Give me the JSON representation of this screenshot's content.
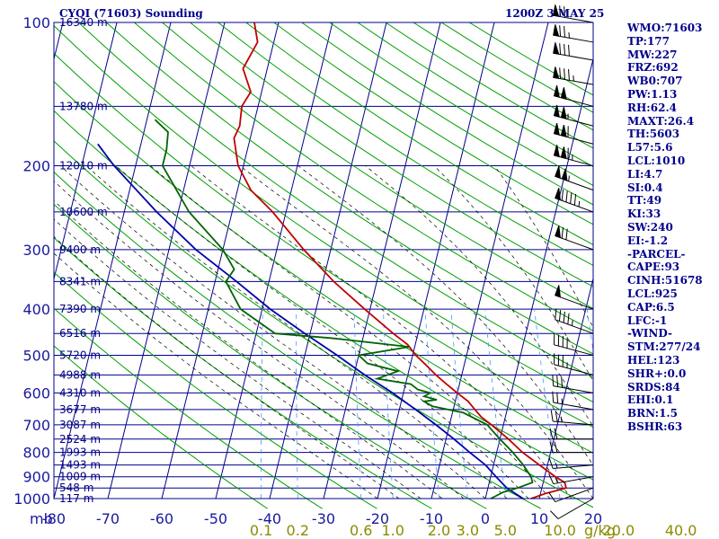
{
  "header": {
    "left": "CYQI (71603) Sounding",
    "right": "1200Z  3 MAY 25"
  },
  "indices": [
    "WMO:71603",
    "TP:177",
    "MW:227",
    "FRZ:692",
    "WB0:707",
    "PW:1.13",
    "RH:62.4",
    "MAXT:26.4",
    "TH:5603",
    "L57:5.6",
    "LCL:1010",
    "LI:4.7",
    "SI:0.4",
    "TT:49",
    "KI:33",
    "SW:240",
    "EI:-1.2",
    "-PARCEL-",
    "CAPE:93",
    "CINH:51678",
    "LCL:925",
    "CAP:6.5",
    "LFC:-1",
    "-WIND-",
    "STM:277/24",
    "HEL:123",
    "SHR+:0.0",
    "SRDS:84",
    "EHI:0.1",
    "BRN:1.5",
    "BSHR:63"
  ],
  "colors": {
    "isobar": "#00008b",
    "isotherm": "#00008b",
    "dry_adiabat": "#00a000",
    "moist_adiabat": "#000000",
    "mixing_ratio": "#4499ff",
    "temperature": "#c00000",
    "dewpoint": "#006400",
    "parcel": "#0000aa",
    "wind_barb": "#000000",
    "mixing_label": "#8b8b00"
  },
  "chart_data": {
    "type": "skew-t log-p sounding",
    "x_unit_label": "mb",
    "xlim": [
      -80,
      20
    ],
    "ylim": [
      1000,
      100
    ],
    "y_scale": "log",
    "pressure_levels": [
      100,
      200,
      300,
      400,
      500,
      600,
      700,
      800,
      900,
      1000
    ],
    "extra_isobars": [
      150,
      250,
      350,
      450,
      550,
      650,
      750,
      850,
      950
    ],
    "temperature_ticks": [
      -80,
      -70,
      -60,
      -50,
      -40,
      -30,
      -20,
      -10,
      0,
      10,
      20
    ],
    "temperature_tick_labels": [
      "-80",
      "-70",
      "-60",
      "-50",
      "-40",
      "-30",
      "-20",
      "-10",
      "0",
      "10",
      "20"
    ],
    "heights": [
      {
        "label": "16340 m",
        "p": 100
      },
      {
        "label": "13780 m",
        "p": 150
      },
      {
        "label": "12010 m",
        "p": 200
      },
      {
        "label": "10600 m",
        "p": 250
      },
      {
        "label": "9400 m",
        "p": 300
      },
      {
        "label": "8341 m",
        "p": 350
      },
      {
        "label": "7390 m",
        "p": 400
      },
      {
        "label": "6516 m",
        "p": 450
      },
      {
        "label": "5720 m",
        "p": 500
      },
      {
        "label": "4988 m",
        "p": 550
      },
      {
        "label": "4310 m",
        "p": 600
      },
      {
        "label": "3677 m",
        "p": 650
      },
      {
        "label": "3087 m",
        "p": 700
      },
      {
        "label": "2524 m",
        "p": 750
      },
      {
        "label": "1993 m",
        "p": 800
      },
      {
        "label": "1493 m",
        "p": 850
      },
      {
        "label": "1009 m",
        "p": 900
      },
      {
        "label": "548 m",
        "p": 950
      },
      {
        "label": "117 m",
        "p": 1000
      }
    ],
    "mixing_ratio_labels": [
      {
        "label": "0.1",
        "w": 0.1
      },
      {
        "label": "0.2",
        "w": 0.2
      },
      {
        "label": "0.6",
        "w": 0.6
      },
      {
        "label": "1.0",
        "w": 1.0
      },
      {
        "label": "2.0",
        "w": 2.0
      },
      {
        "label": "3.0",
        "w": 3.0
      },
      {
        "label": "5.0",
        "w": 5.0
      },
      {
        "label": "10.0",
        "w": 10.0
      },
      {
        "label": "20.0",
        "w": 20.0
      },
      {
        "label": "40.0",
        "w": 40.0
      }
    ],
    "mixing_ratio_unit": "g/kg",
    "series": [
      {
        "key": "temperature",
        "points": [
          [
            1000,
            8.5
          ],
          [
            975,
            11.0
          ],
          [
            950,
            14.5
          ],
          [
            925,
            14.0
          ],
          [
            900,
            12.0
          ],
          [
            850,
            8.5
          ],
          [
            800,
            4.8
          ],
          [
            750,
            1.6
          ],
          [
            700,
            -2.2
          ],
          [
            675,
            -4.4
          ],
          [
            650,
            -6.0
          ],
          [
            625,
            -7.6
          ],
          [
            600,
            -10.0
          ],
          [
            575,
            -12.4
          ],
          [
            550,
            -14.8
          ],
          [
            525,
            -17.0
          ],
          [
            500,
            -19.4
          ],
          [
            475,
            -21.4
          ],
          [
            450,
            -24.6
          ],
          [
            400,
            -31.0
          ],
          [
            350,
            -38.0
          ],
          [
            300,
            -45.0
          ],
          [
            250,
            -52.5
          ],
          [
            225,
            -57.5
          ],
          [
            200,
            -61.0
          ],
          [
            175,
            -63.0
          ],
          [
            165,
            -62.5
          ],
          [
            150,
            -63.0
          ],
          [
            140,
            -62.0
          ],
          [
            125,
            -64.5
          ],
          [
            110,
            -63.0
          ],
          [
            100,
            -64.5
          ]
        ]
      },
      {
        "key": "dewpoint",
        "points": [
          [
            1000,
            1.0
          ],
          [
            985,
            2.0
          ],
          [
            970,
            3.0
          ],
          [
            950,
            5.5
          ],
          [
            925,
            8.0
          ],
          [
            900,
            7.5
          ],
          [
            850,
            5.5
          ],
          [
            800,
            3.0
          ],
          [
            750,
            0.0
          ],
          [
            700,
            -3.0
          ],
          [
            660,
            -8.0
          ],
          [
            640,
            -14.0
          ],
          [
            625,
            -15.8
          ],
          [
            620,
            -13.5
          ],
          [
            610,
            -16.0
          ],
          [
            600,
            -15.0
          ],
          [
            590,
            -17.5
          ],
          [
            575,
            -19.0
          ],
          [
            560,
            -25.5
          ],
          [
            540,
            -22.0
          ],
          [
            520,
            -28.0
          ],
          [
            500,
            -30.0
          ],
          [
            480,
            -21.0
          ],
          [
            460,
            -36.0
          ],
          [
            450,
            -46.5
          ],
          [
            400,
            -54.0
          ],
          [
            350,
            -58.0
          ],
          [
            330,
            -57.0
          ],
          [
            300,
            -60.0
          ],
          [
            250,
            -68.0
          ],
          [
            200,
            -75.0
          ],
          [
            185,
            -75.0
          ],
          [
            170,
            -75.5
          ],
          [
            160,
            -78.5
          ]
        ]
      },
      {
        "key": "parcel",
        "points": [
          [
            1000,
            7.0
          ],
          [
            950,
            3.5
          ],
          [
            900,
            1.0
          ],
          [
            850,
            -1.5
          ],
          [
            800,
            -5.0
          ],
          [
            750,
            -8.5
          ],
          [
            700,
            -12.5
          ],
          [
            650,
            -17.0
          ],
          [
            600,
            -22.0
          ],
          [
            550,
            -28.0
          ],
          [
            500,
            -34.0
          ],
          [
            450,
            -41.0
          ],
          [
            400,
            -48.5
          ],
          [
            350,
            -56.0
          ],
          [
            300,
            -65.0
          ],
          [
            250,
            -74.0
          ],
          [
            200,
            -84.0
          ],
          [
            180,
            -88.0
          ]
        ]
      }
    ],
    "wind_barbs": [
      {
        "p": 100,
        "dir": 280,
        "spd": 70
      },
      {
        "p": 110,
        "dir": 280,
        "spd": 75
      },
      {
        "p": 120,
        "dir": 280,
        "spd": 80
      },
      {
        "p": 135,
        "dir": 280,
        "spd": 85
      },
      {
        "p": 150,
        "dir": 285,
        "spd": 100
      },
      {
        "p": 165,
        "dir": 285,
        "spd": 105
      },
      {
        "p": 180,
        "dir": 285,
        "spd": 110
      },
      {
        "p": 200,
        "dir": 285,
        "spd": 115
      },
      {
        "p": 225,
        "dir": 290,
        "spd": 105
      },
      {
        "p": 250,
        "dir": 290,
        "spd": 95
      },
      {
        "p": 300,
        "dir": 290,
        "spd": 70
      },
      {
        "p": 400,
        "dir": 290,
        "spd": 50
      },
      {
        "p": 450,
        "dir": 290,
        "spd": 45
      },
      {
        "p": 500,
        "dir": 285,
        "spd": 40
      },
      {
        "p": 550,
        "dir": 285,
        "spd": 35
      },
      {
        "p": 600,
        "dir": 280,
        "spd": 30
      },
      {
        "p": 650,
        "dir": 280,
        "spd": 25
      },
      {
        "p": 700,
        "dir": 275,
        "spd": 25
      },
      {
        "p": 750,
        "dir": 270,
        "spd": 20
      },
      {
        "p": 800,
        "dir": 270,
        "spd": 20
      },
      {
        "p": 850,
        "dir": 265,
        "spd": 15
      },
      {
        "p": 900,
        "dir": 260,
        "spd": 15
      },
      {
        "p": 950,
        "dir": 250,
        "spd": 10
      },
      {
        "p": 1000,
        "dir": 240,
        "spd": 10
      }
    ]
  }
}
